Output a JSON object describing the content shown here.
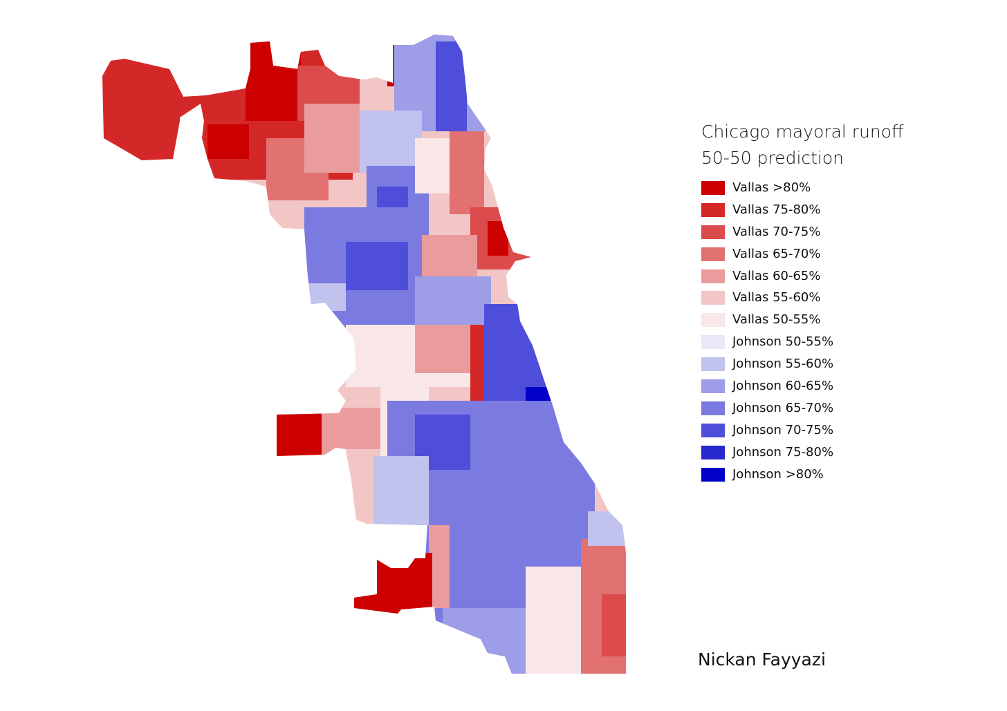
{
  "title": [
    "Chicago mayoral runoff",
    "50-50 prediction"
  ],
  "author": "Nickan Fayyazi",
  "legend": [
    {
      "label": "Vallas >80%",
      "color": "#cc0000"
    },
    {
      "label": "Vallas 75-80%",
      "color": "#d42828"
    },
    {
      "label": "Vallas 70-75%",
      "color": "#dc4b4b"
    },
    {
      "label": "Vallas 65-70%",
      "color": "#e27171"
    },
    {
      "label": "Vallas 60-65%",
      "color": "#ea9c9c"
    },
    {
      "label": "Vallas 55-60%",
      "color": "#f3c6c6"
    },
    {
      "label": "Vallas 50-55%",
      "color": "#f9e7e7"
    },
    {
      "label": "Johnson 50-55%",
      "color": "#e8e8f9"
    },
    {
      "label": "Johnson 55-60%",
      "color": "#c2c2ef"
    },
    {
      "label": "Johnson 60-65%",
      "color": "#9e9ee8"
    },
    {
      "label": "Johnson 65-70%",
      "color": "#7a7ae0"
    },
    {
      "label": "Johnson 70-75%",
      "color": "#4e4edb"
    },
    {
      "label": "Johnson 75-80%",
      "color": "#2828cf"
    },
    {
      "label": "Johnson >80%",
      "color": "#0000c8"
    }
  ]
}
